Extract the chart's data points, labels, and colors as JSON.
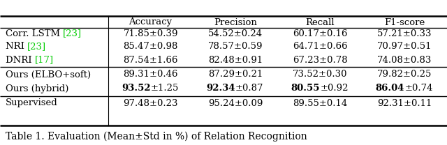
{
  "headers": [
    "Accuracy",
    "Precision",
    "Recall",
    "F1-score"
  ],
  "rows": [
    {
      "label_parts": [
        {
          "text": "Corr. LSTM ",
          "color": "black"
        },
        {
          "text": "[23]",
          "color": "#00cc00"
        }
      ],
      "values": [
        "71.85±0.39",
        "54.52±0.24",
        "60.17±0.16",
        "57.21±0.33"
      ],
      "bold_parts": []
    },
    {
      "label_parts": [
        {
          "text": "NRI ",
          "color": "black"
        },
        {
          "text": "[23]",
          "color": "#00cc00"
        }
      ],
      "values": [
        "85.47±0.98",
        "78.57±0.59",
        "64.71±0.66",
        "70.97±0.51"
      ],
      "bold_parts": []
    },
    {
      "label_parts": [
        {
          "text": "DNRI ",
          "color": "black"
        },
        {
          "text": "[17]",
          "color": "#00cc00"
        }
      ],
      "values": [
        "87.54±1.66",
        "82.48±0.91",
        "67.23±0.78",
        "74.08±0.83"
      ],
      "bold_parts": []
    },
    {
      "label_parts": [
        {
          "text": "Ours (ELBO+soft)",
          "color": "black"
        }
      ],
      "values": [
        "89.31±0.46",
        "87.29±0.21",
        "73.52±0.30",
        "79.82±0.25"
      ],
      "bold_parts": []
    },
    {
      "label_parts": [
        {
          "text": "Ours (hybrid)",
          "color": "black"
        }
      ],
      "values": [
        "93.52±1.25",
        "92.34±0.87",
        "80.55±0.92",
        "86.04±0.74"
      ],
      "bold_parts": [
        "93.52",
        "92.34",
        "80.55",
        "86.04"
      ]
    },
    {
      "label_parts": [
        {
          "text": "Supervised",
          "color": "black"
        }
      ],
      "values": [
        "97.48±0.23",
        "95.24±0.09",
        "89.55±0.14",
        "92.31±0.11"
      ],
      "bold_parts": []
    }
  ],
  "caption": "Table 1. Evaluation (Mean±Std in %) of Relation Recognition",
  "font_size": 9.5,
  "caption_font_size": 10.0,
  "green_color": "#00cc00",
  "bg_color": "white"
}
